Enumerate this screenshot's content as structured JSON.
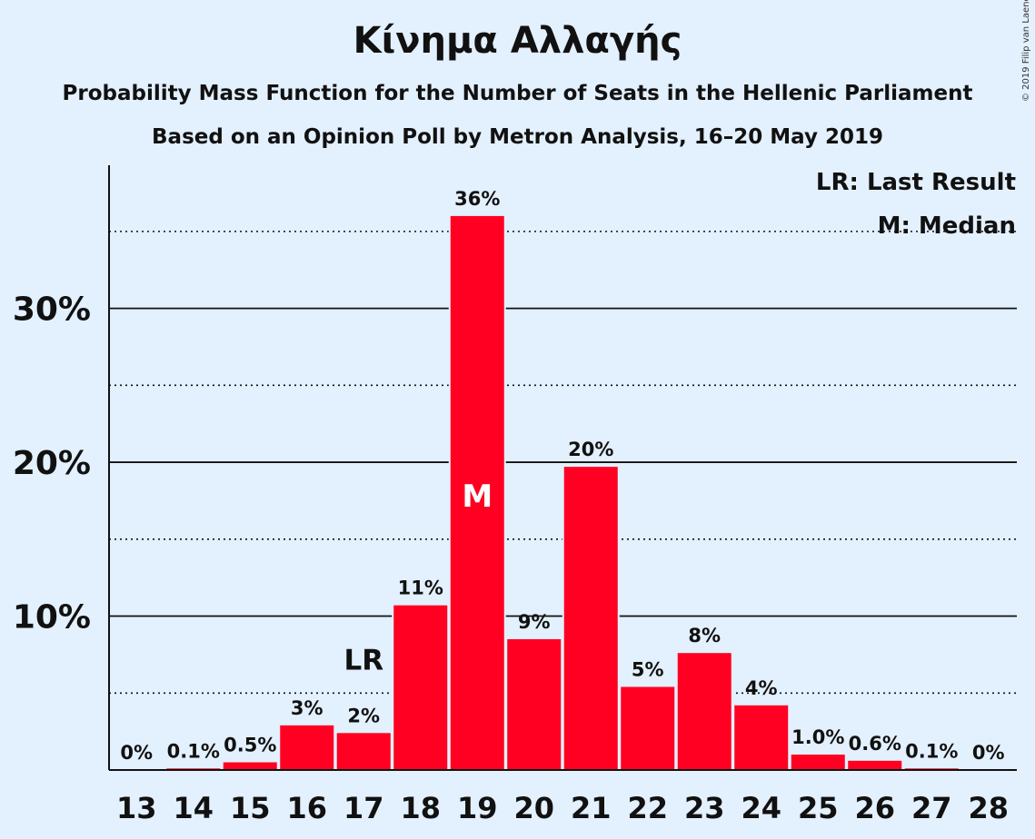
{
  "header": {
    "title": "Κίνημα Αλλαγής",
    "subtitle": "Probability Mass Function for the Number of Seats in the Hellenic Parliament",
    "subtitle2": "Based on an Opinion Poll by Metron Analysis, 16–20 May 2019",
    "copyright": "© 2019 Filip van Laenen"
  },
  "legend": {
    "last_result": "LR: Last Result",
    "median": "M: Median"
  },
  "colors": {
    "background": "#e3f0fd",
    "bar": "#ff0022",
    "text": "#111111"
  },
  "chart_data": {
    "type": "bar",
    "title": "Κίνημα Αλλαγής",
    "categories": [
      "13",
      "14",
      "15",
      "16",
      "17",
      "18",
      "19",
      "20",
      "21",
      "22",
      "23",
      "24",
      "25",
      "26",
      "27",
      "28"
    ],
    "values": [
      0,
      0.1,
      0.5,
      2.9,
      2.4,
      10.7,
      36.0,
      8.5,
      19.7,
      5.4,
      7.6,
      4.2,
      1.0,
      0.6,
      0.1,
      0
    ],
    "value_labels": [
      "0%",
      "0.1%",
      "0.5%",
      "3%",
      "2%",
      "11%",
      "36%",
      "9%",
      "20%",
      "5%",
      "8%",
      "4%",
      "1.0%",
      "0.6%",
      "0.1%",
      "0%"
    ],
    "yticks": [
      10,
      20,
      30
    ],
    "ytick_labels": [
      "10%",
      "20%",
      "30%"
    ],
    "minor_gridlines": [
      5,
      15,
      25,
      35
    ],
    "ylim": [
      0,
      39.3
    ],
    "markers": {
      "last_result": {
        "category": "17",
        "label": "LR"
      },
      "median": {
        "category": "19",
        "label": "M"
      }
    },
    "legend_position": "top-right",
    "grid": true
  }
}
